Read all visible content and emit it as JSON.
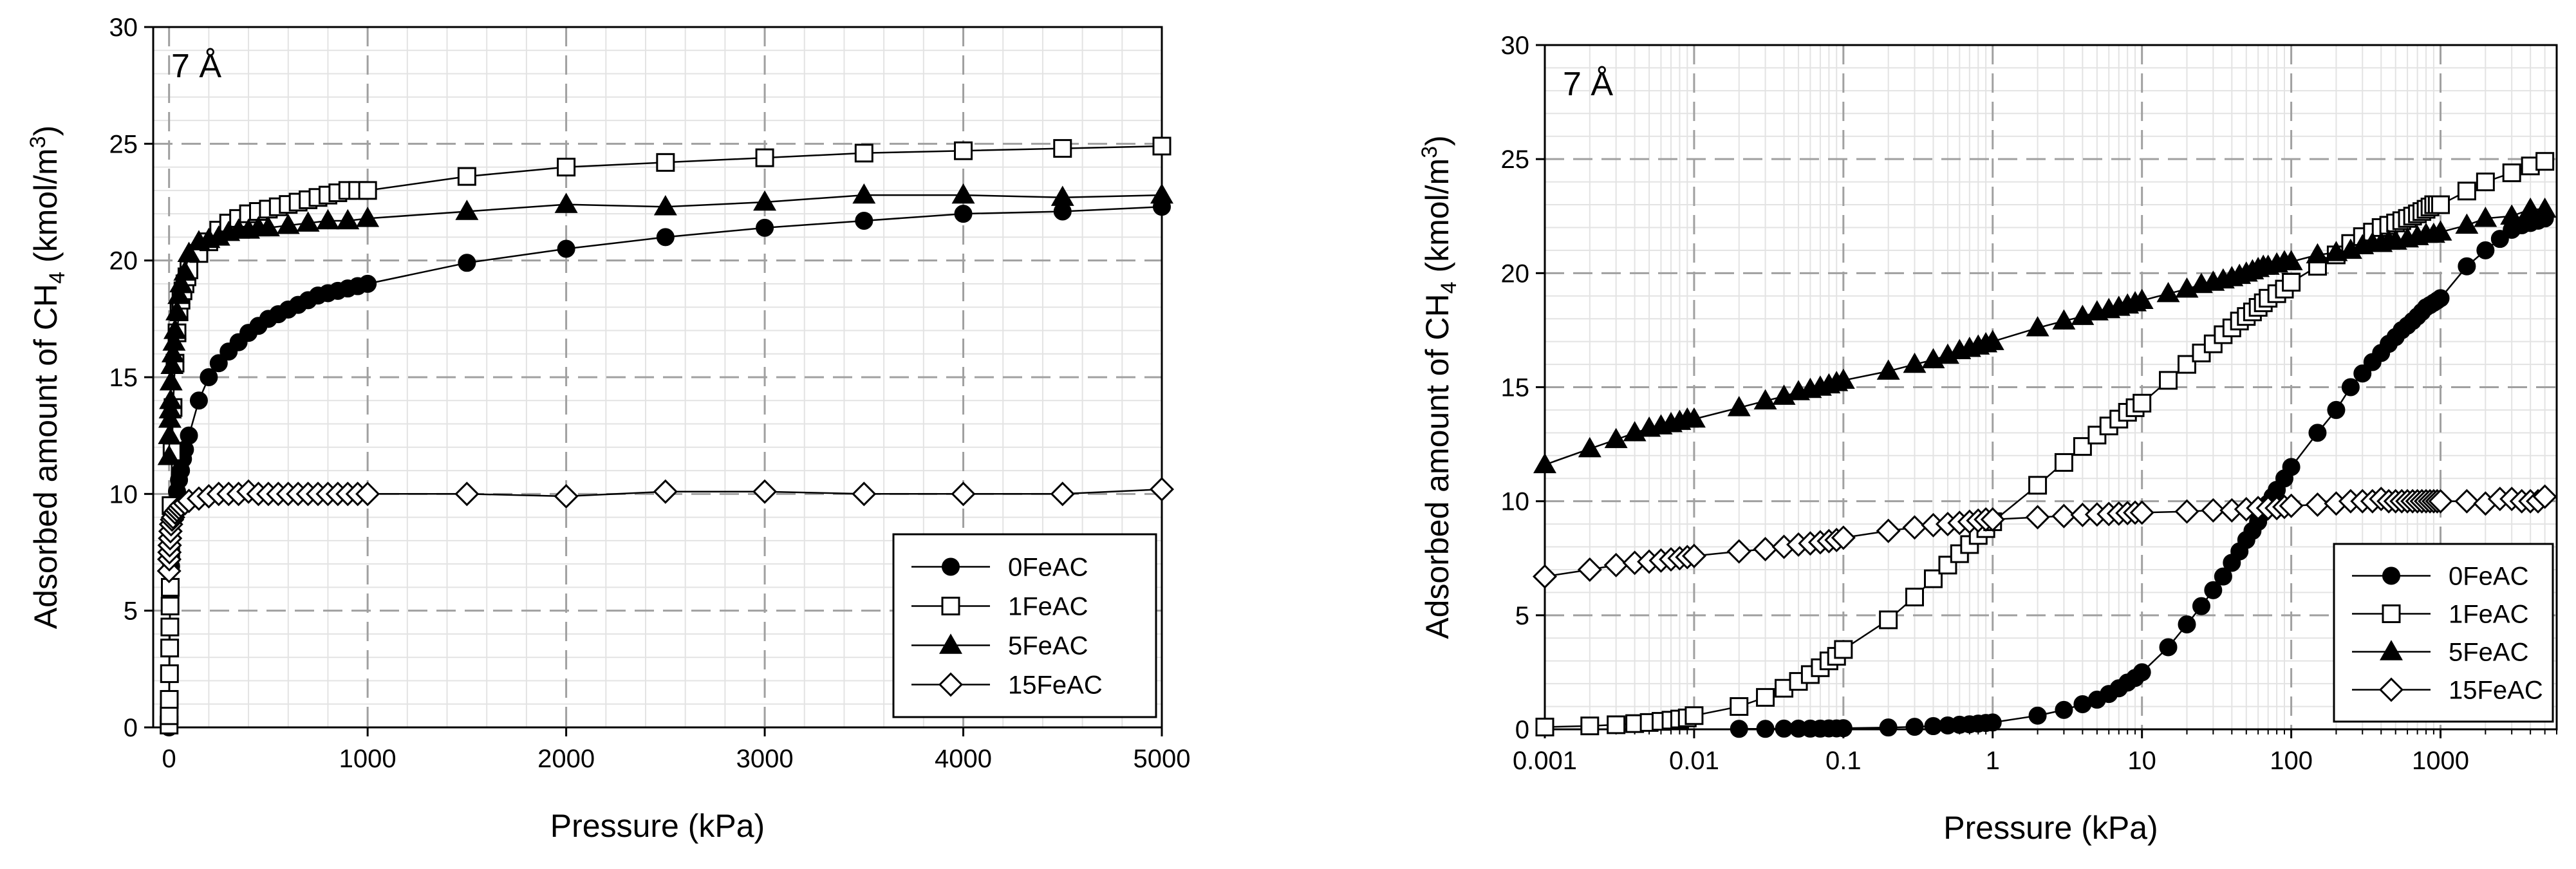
{
  "chart_data": [
    {
      "type": "line",
      "panel_label": "7 Å",
      "xlabel": "Pressure (kPa)",
      "ylabel_prefix": "Adsorbed amount of CH",
      "ylabel_sub": "4",
      "ylabel_mid": " (kmol/m",
      "ylabel_sup": "3",
      "ylabel_suffix": ")",
      "xscale": "linear",
      "xlim": [
        -80,
        5000
      ],
      "ylim": [
        0,
        30
      ],
      "x_ticks": [
        0,
        1000,
        2000,
        3000,
        4000,
        5000
      ],
      "x_tick_labels": [
        "0",
        "1000",
        "2000",
        "3000",
        "4000",
        "5000"
      ],
      "y_ticks": [
        0,
        5,
        10,
        15,
        20,
        25,
        30
      ],
      "y_tick_labels": [
        "0",
        "5",
        "10",
        "15",
        "20",
        "25",
        "30"
      ],
      "grid": true,
      "legend_position": "bottom-right",
      "series": [
        {
          "name": "0FeAC",
          "marker": "circle-filled",
          "x": [
            0,
            2,
            5,
            10,
            20,
            30,
            40,
            50,
            60,
            70,
            80,
            100,
            150,
            200,
            250,
            300,
            350,
            400,
            450,
            500,
            550,
            600,
            650,
            700,
            750,
            800,
            850,
            900,
            950,
            1000,
            1500,
            2000,
            2500,
            3000,
            3500,
            4000,
            4500,
            5000
          ],
          "y": [
            0,
            3.4,
            5.4,
            6.9,
            8.9,
            9.6,
            10.1,
            10.6,
            11.0,
            11.5,
            11.9,
            12.5,
            14.0,
            15.0,
            15.6,
            16.1,
            16.5,
            16.9,
            17.2,
            17.5,
            17.7,
            17.9,
            18.1,
            18.3,
            18.5,
            18.6,
            18.7,
            18.8,
            18.9,
            19.0,
            19.9,
            20.5,
            21.0,
            21.4,
            21.7,
            22.0,
            22.1,
            22.3
          ]
        },
        {
          "name": "1FeAC",
          "marker": "square-open",
          "x": [
            0,
            0.5,
            1,
            2,
            3,
            4,
            5,
            6,
            8,
            10,
            15,
            20,
            30,
            40,
            50,
            60,
            70,
            80,
            90,
            100,
            150,
            200,
            250,
            300,
            350,
            400,
            450,
            500,
            550,
            600,
            650,
            700,
            750,
            800,
            850,
            900,
            950,
            1000,
            1500,
            2000,
            2500,
            3000,
            3500,
            4000,
            4500,
            5000
          ],
          "y": [
            0.1,
            0.5,
            1.2,
            2.3,
            3.4,
            4.3,
            5.2,
            6.0,
            7.5,
            9.5,
            11.8,
            13.7,
            15.6,
            16.9,
            17.8,
            18.3,
            18.7,
            19.0,
            19.3,
            19.6,
            20.3,
            20.8,
            21.3,
            21.6,
            21.8,
            22.0,
            22.1,
            22.2,
            22.3,
            22.4,
            22.5,
            22.6,
            22.7,
            22.8,
            22.9,
            23.0,
            23.0,
            23.0,
            23.6,
            24.0,
            24.2,
            24.4,
            24.6,
            24.7,
            24.8,
            24.9
          ]
        },
        {
          "name": "5FeAC",
          "marker": "triangle-filled",
          "x": [
            0,
            2,
            4,
            6,
            8,
            10,
            15,
            20,
            25,
            30,
            40,
            50,
            60,
            80,
            100,
            150,
            200,
            250,
            300,
            350,
            400,
            450,
            500,
            600,
            700,
            800,
            900,
            1000,
            1500,
            2000,
            2500,
            3000,
            3500,
            4000,
            4500,
            5000
          ],
          "y": [
            11.6,
            12.5,
            13.2,
            13.6,
            14.0,
            14.8,
            15.5,
            16.0,
            16.5,
            17.0,
            17.8,
            18.5,
            19.0,
            19.5,
            20.3,
            20.8,
            20.9,
            21.0,
            21.2,
            21.3,
            21.3,
            21.4,
            21.4,
            21.5,
            21.6,
            21.7,
            21.7,
            21.8,
            22.1,
            22.4,
            22.3,
            22.5,
            22.8,
            22.8,
            22.7,
            22.8
          ]
        },
        {
          "name": "15FeAC",
          "marker": "diamond-open",
          "x": [
            0,
            1,
            2,
            3,
            5,
            7,
            10,
            15,
            20,
            30,
            40,
            50,
            60,
            80,
            100,
            150,
            200,
            250,
            300,
            350,
            400,
            450,
            500,
            550,
            600,
            650,
            700,
            750,
            800,
            850,
            900,
            950,
            1000,
            1500,
            2000,
            2500,
            3000,
            3500,
            4000,
            4500,
            5000
          ],
          "y": [
            6.7,
            7.2,
            7.5,
            7.8,
            8.1,
            8.4,
            8.7,
            8.9,
            9.0,
            9.2,
            9.3,
            9.4,
            9.5,
            9.6,
            9.7,
            9.8,
            9.9,
            10.0,
            10.0,
            10.0,
            10.1,
            10.0,
            10.0,
            10.0,
            10.0,
            10.0,
            10.0,
            10.0,
            10.0,
            10.0,
            10.0,
            10.0,
            10.0,
            10.0,
            9.9,
            10.1,
            10.1,
            10.0,
            10.0,
            10.0,
            10.2
          ]
        }
      ]
    },
    {
      "type": "line",
      "panel_label": "7 Å",
      "xlabel": "Pressure (kPa)",
      "ylabel_prefix": "Adsorbed amount of CH",
      "ylabel_sub": "4",
      "ylabel_mid": " (kmol/m",
      "ylabel_sup": "3",
      "ylabel_suffix": ")",
      "xscale": "log",
      "xlim": [
        0.001,
        6000
      ],
      "ylim": [
        0,
        30
      ],
      "x_ticks": [
        0.001,
        0.01,
        0.1,
        1,
        10,
        100,
        1000
      ],
      "x_tick_labels": [
        "0.001",
        "0.01",
        "0.1",
        "1",
        "10",
        "100",
        "1000"
      ],
      "y_ticks": [
        0,
        5,
        10,
        15,
        20,
        25,
        30
      ],
      "y_tick_labels": [
        "0",
        "5",
        "10",
        "15",
        "20",
        "25",
        "30"
      ],
      "grid": true,
      "legend_position": "bottom-right",
      "series": [
        {
          "name": "0FeAC",
          "marker": "circle-filled",
          "x": [
            0.02,
            0.03,
            0.04,
            0.05,
            0.06,
            0.07,
            0.08,
            0.09,
            0.1,
            0.2,
            0.3,
            0.4,
            0.5,
            0.6,
            0.7,
            0.8,
            0.9,
            1,
            2,
            3,
            4,
            5,
            6,
            7,
            8,
            9,
            10,
            15,
            20,
            25,
            30,
            35,
            40,
            45,
            50,
            55,
            60,
            65,
            70,
            75,
            80,
            90,
            100,
            150,
            200,
            250,
            300,
            350,
            400,
            450,
            500,
            550,
            600,
            650,
            700,
            750,
            800,
            850,
            900,
            950,
            1000,
            1500,
            2000,
            2500,
            3000,
            3500,
            4000,
            4500,
            5000
          ],
          "y": [
            0.02,
            0.02,
            0.03,
            0.03,
            0.03,
            0.03,
            0.04,
            0.04,
            0.05,
            0.08,
            0.11,
            0.14,
            0.17,
            0.2,
            0.22,
            0.25,
            0.28,
            0.3,
            0.6,
            0.85,
            1.1,
            1.3,
            1.55,
            1.8,
            2.05,
            2.25,
            2.5,
            3.6,
            4.6,
            5.4,
            6.1,
            6.7,
            7.3,
            7.8,
            8.3,
            8.7,
            9.1,
            9.5,
            9.9,
            10.2,
            10.5,
            11.0,
            11.5,
            13.0,
            14.0,
            15.0,
            15.6,
            16.1,
            16.5,
            16.9,
            17.2,
            17.5,
            17.7,
            17.9,
            18.1,
            18.3,
            18.5,
            18.6,
            18.7,
            18.8,
            18.9,
            20.3,
            21.0,
            21.5,
            21.9,
            22.1,
            22.2,
            22.3,
            22.4
          ]
        },
        {
          "name": "1FeAC",
          "marker": "square-open",
          "x": [
            0.001,
            0.002,
            0.003,
            0.004,
            0.005,
            0.006,
            0.007,
            0.008,
            0.009,
            0.01,
            0.02,
            0.03,
            0.04,
            0.05,
            0.06,
            0.07,
            0.08,
            0.09,
            0.1,
            0.2,
            0.3,
            0.4,
            0.5,
            0.6,
            0.7,
            0.8,
            0.9,
            1,
            2,
            3,
            4,
            5,
            6,
            7,
            8,
            9,
            10,
            15,
            20,
            25,
            30,
            35,
            40,
            45,
            50,
            55,
            60,
            65,
            70,
            80,
            90,
            100,
            150,
            200,
            250,
            300,
            350,
            400,
            450,
            500,
            550,
            600,
            650,
            700,
            750,
            800,
            850,
            900,
            950,
            1000,
            1500,
            2000,
            3000,
            4000,
            5000
          ],
          "y": [
            0.1,
            0.15,
            0.2,
            0.25,
            0.3,
            0.35,
            0.4,
            0.45,
            0.5,
            0.6,
            1.0,
            1.4,
            1.8,
            2.1,
            2.4,
            2.7,
            3.0,
            3.2,
            3.5,
            4.8,
            5.8,
            6.6,
            7.2,
            7.7,
            8.1,
            8.5,
            8.8,
            9.1,
            10.7,
            11.7,
            12.4,
            12.9,
            13.3,
            13.6,
            13.9,
            14.1,
            14.3,
            15.3,
            16.0,
            16.5,
            16.9,
            17.3,
            17.6,
            17.9,
            18.1,
            18.3,
            18.5,
            18.7,
            18.9,
            19.1,
            19.3,
            19.6,
            20.3,
            20.8,
            21.3,
            21.6,
            21.8,
            22.0,
            22.1,
            22.2,
            22.3,
            22.4,
            22.5,
            22.6,
            22.7,
            22.8,
            22.9,
            23.0,
            23.0,
            23.0,
            23.6,
            24.0,
            24.4,
            24.7,
            24.9
          ]
        },
        {
          "name": "5FeAC",
          "marker": "triangle-filled",
          "x": [
            0.001,
            0.002,
            0.003,
            0.004,
            0.005,
            0.006,
            0.007,
            0.008,
            0.009,
            0.01,
            0.02,
            0.03,
            0.04,
            0.05,
            0.06,
            0.07,
            0.08,
            0.09,
            0.1,
            0.2,
            0.3,
            0.4,
            0.5,
            0.6,
            0.7,
            0.8,
            0.9,
            1,
            2,
            3,
            4,
            5,
            6,
            7,
            8,
            9,
            10,
            15,
            20,
            25,
            30,
            35,
            40,
            45,
            50,
            55,
            60,
            65,
            70,
            80,
            90,
            100,
            150,
            200,
            250,
            300,
            350,
            400,
            450,
            500,
            600,
            700,
            800,
            900,
            1000,
            1500,
            2000,
            3000,
            4000,
            5000
          ],
          "y": [
            11.6,
            12.3,
            12.7,
            13.0,
            13.2,
            13.3,
            13.4,
            13.5,
            13.6,
            13.6,
            14.1,
            14.4,
            14.6,
            14.8,
            14.9,
            15.0,
            15.1,
            15.2,
            15.3,
            15.7,
            16.0,
            16.2,
            16.4,
            16.6,
            16.7,
            16.8,
            16.9,
            17.0,
            17.6,
            17.9,
            18.1,
            18.3,
            18.4,
            18.5,
            18.6,
            18.7,
            18.8,
            19.1,
            19.3,
            19.5,
            19.6,
            19.7,
            19.8,
            19.9,
            20.0,
            20.1,
            20.2,
            20.3,
            20.3,
            20.4,
            20.5,
            20.5,
            20.8,
            20.9,
            21.0,
            21.2,
            21.3,
            21.3,
            21.4,
            21.4,
            21.5,
            21.6,
            21.7,
            21.7,
            21.8,
            22.1,
            22.4,
            22.5,
            22.8,
            22.8
          ]
        },
        {
          "name": "15FeAC",
          "marker": "diamond-open",
          "x": [
            0.001,
            0.002,
            0.003,
            0.004,
            0.005,
            0.006,
            0.007,
            0.008,
            0.009,
            0.01,
            0.02,
            0.03,
            0.04,
            0.05,
            0.06,
            0.07,
            0.08,
            0.09,
            0.1,
            0.2,
            0.3,
            0.4,
            0.5,
            0.6,
            0.7,
            0.8,
            0.9,
            1,
            2,
            3,
            4,
            5,
            6,
            7,
            8,
            9,
            10,
            20,
            30,
            40,
            50,
            60,
            70,
            80,
            90,
            100,
            150,
            200,
            250,
            300,
            350,
            400,
            450,
            500,
            550,
            600,
            650,
            700,
            750,
            800,
            850,
            900,
            950,
            1000,
            1500,
            2000,
            2500,
            3000,
            3500,
            4000,
            4500,
            5000
          ],
          "y": [
            6.7,
            7.0,
            7.2,
            7.3,
            7.35,
            7.4,
            7.45,
            7.5,
            7.55,
            7.6,
            7.8,
            7.9,
            8.0,
            8.1,
            8.15,
            8.2,
            8.25,
            8.3,
            8.4,
            8.7,
            8.85,
            8.95,
            9.0,
            9.05,
            9.1,
            9.15,
            9.2,
            9.2,
            9.3,
            9.35,
            9.4,
            9.42,
            9.44,
            9.46,
            9.48,
            9.5,
            9.5,
            9.55,
            9.6,
            9.6,
            9.65,
            9.7,
            9.7,
            9.7,
            9.75,
            9.8,
            9.85,
            9.9,
            10.0,
            10.0,
            10.0,
            10.1,
            10.0,
            10.0,
            10.0,
            10.0,
            10.0,
            10.0,
            10.0,
            10.0,
            10.0,
            10.0,
            10.0,
            10.0,
            10.0,
            9.9,
            10.1,
            10.1,
            10.0,
            10.0,
            10.0,
            10.2
          ]
        }
      ]
    }
  ]
}
